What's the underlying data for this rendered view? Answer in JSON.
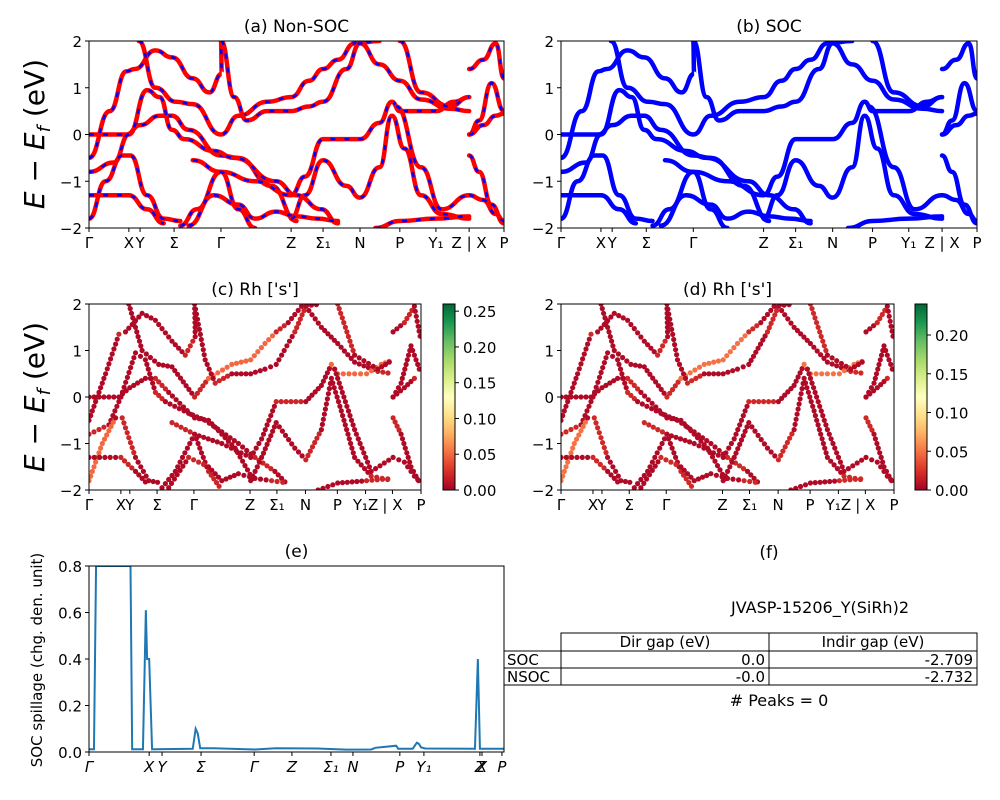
{
  "figure": {
    "id_label": "JVASP-15206_Y(SiRh)2",
    "peaks_text": "# Peaks = 0"
  },
  "chart_data": [
    {
      "panel": "a",
      "type": "line",
      "title": "(a) Non-SOC",
      "ylabel": "E − E_f (eV)",
      "ylim": [
        -2,
        2
      ],
      "yticks": [
        "2",
        "1",
        "0",
        "−1",
        "−2"
      ],
      "xticks": [
        "Γ",
        "X",
        "Y",
        "Σ",
        "Γ",
        "Z",
        "Σ₁",
        "N",
        "P",
        "Y₁",
        "Z | X",
        "P"
      ],
      "xtick_pos": [
        0,
        0.096,
        0.123,
        0.205,
        0.318,
        0.487,
        0.564,
        0.653,
        0.749,
        0.836,
        0.916,
        1.0
      ],
      "style": "red solid with blue dashed overlay",
      "colors": {
        "solid": "#ff0000",
        "dash": "#0000ff"
      },
      "bands": [
        [
          [
            0,
            0
          ],
          [
            0.09,
            0
          ],
          [
            0.123,
            0.2
          ],
          [
            0.17,
            0.4
          ],
          [
            0.2,
            0.4
          ],
          [
            0.24,
            0.1
          ],
          [
            0.318,
            -0.45
          ],
          [
            0.36,
            -0.5
          ],
          [
            0.44,
            -1.1
          ],
          [
            0.5,
            -1.85
          ]
        ],
        [
          [
            0,
            -0.5
          ],
          [
            0.05,
            0.5
          ],
          [
            0.09,
            1.35
          ],
          [
            0.11,
            1.4
          ],
          [
            0.16,
            1.8
          ],
          [
            0.2,
            1.65
          ],
          [
            0.25,
            1.2
          ],
          [
            0.29,
            0.9
          ],
          [
            0.32,
            1.3
          ],
          [
            0.318,
            2.0
          ]
        ],
        [
          [
            0,
            -0.8
          ],
          [
            0.06,
            -0.6
          ],
          [
            0.096,
            0.0
          ],
          [
            0.14,
            0.95
          ],
          [
            0.17,
            0.8
          ],
          [
            0.2,
            0.1
          ],
          [
            0.23,
            -0.1
          ],
          [
            0.3,
            -0.35
          ],
          [
            0.35,
            -0.5
          ],
          [
            0.45,
            -1.0
          ],
          [
            0.5,
            -1.3
          ],
          [
            0.56,
            -1.6
          ],
          [
            0.6,
            -1.9
          ]
        ],
        [
          [
            0,
            -1.8
          ],
          [
            0.04,
            -1.0
          ],
          [
            0.08,
            -0.45
          ],
          [
            0.1,
            -0.45
          ],
          [
            0.14,
            -1.3
          ],
          [
            0.18,
            -1.8
          ],
          [
            0.22,
            -1.85
          ]
        ],
        [
          [
            0,
            -1.3
          ],
          [
            0.096,
            -1.3
          ],
          [
            0.14,
            -1.6
          ],
          [
            0.18,
            -1.9
          ]
        ],
        [
          [
            0.12,
            2.0
          ],
          [
            0.16,
            1.0
          ],
          [
            0.21,
            0.7
          ],
          [
            0.25,
            0.65
          ],
          [
            0.318,
            0.0
          ],
          [
            0.36,
            0.4
          ],
          [
            0.43,
            0.7
          ],
          [
            0.487,
            0.8
          ],
          [
            0.53,
            1.15
          ],
          [
            0.564,
            1.4
          ],
          [
            0.6,
            1.6
          ],
          [
            0.64,
            1.95
          ],
          [
            0.7,
            2.0
          ]
        ],
        [
          [
            0.318,
            2.0
          ],
          [
            0.35,
            0.8
          ],
          [
            0.38,
            0.3
          ],
          [
            0.43,
            0.5
          ],
          [
            0.487,
            0.5
          ],
          [
            0.53,
            0.6
          ],
          [
            0.564,
            0.7
          ],
          [
            0.62,
            1.4
          ],
          [
            0.653,
            1.95
          ],
          [
            0.7,
            1.5
          ],
          [
            0.749,
            1.15
          ],
          [
            0.8,
            0.75
          ],
          [
            0.87,
            0.55
          ],
          [
            0.916,
            0.5
          ]
        ],
        [
          [
            0.25,
            -0.55
          ],
          [
            0.318,
            -0.8
          ],
          [
            0.4,
            -1.0
          ],
          [
            0.487,
            -1.3
          ],
          [
            0.52,
            -0.9
          ],
          [
            0.564,
            -0.1
          ],
          [
            0.653,
            -0.1
          ],
          [
            0.7,
            0.25
          ],
          [
            0.73,
            0.7
          ],
          [
            0.749,
            0.5
          ],
          [
            0.8,
            0.5
          ],
          [
            0.836,
            0.5
          ],
          [
            0.88,
            0.7
          ],
          [
            0.916,
            0.8
          ]
        ],
        [
          [
            0.22,
            -1.95
          ],
          [
            0.26,
            -1.6
          ],
          [
            0.318,
            -0.8
          ],
          [
            0.36,
            -1.6
          ],
          [
            0.4,
            -2.0
          ]
        ],
        [
          [
            0.24,
            -1.95
          ],
          [
            0.3,
            -1.3
          ],
          [
            0.36,
            -1.5
          ],
          [
            0.4,
            -1.8
          ],
          [
            0.45,
            -1.65
          ],
          [
            0.5,
            -1.75
          ],
          [
            0.55,
            -1.8
          ],
          [
            0.6,
            -1.85
          ]
        ],
        [
          [
            0.487,
            -1.8
          ],
          [
            0.52,
            -1.3
          ],
          [
            0.564,
            -0.55
          ],
          [
            0.62,
            -1.1
          ],
          [
            0.653,
            -1.35
          ],
          [
            0.7,
            -0.7
          ],
          [
            0.73,
            0.4
          ],
          [
            0.76,
            -0.3
          ],
          [
            0.8,
            -1.3
          ],
          [
            0.85,
            -1.7
          ],
          [
            0.916,
            -1.8
          ]
        ],
        [
          [
            0.69,
            -2.0
          ],
          [
            0.749,
            -1.85
          ],
          [
            0.836,
            -1.8
          ],
          [
            0.916,
            -1.75
          ]
        ],
        [
          [
            0.749,
            2.0
          ],
          [
            0.8,
            0.9
          ],
          [
            0.87,
            0.6
          ],
          [
            0.916,
            0.8
          ]
        ],
        [
          [
            0.74,
            0.6
          ],
          [
            0.8,
            -0.7
          ],
          [
            0.85,
            -1.6
          ],
          [
            0.916,
            -1.3
          ]
        ],
        [
          [
            0.916,
            1.4
          ],
          [
            0.95,
            1.6
          ],
          [
            0.98,
            1.95
          ],
          [
            1.0,
            1.2
          ]
        ],
        [
          [
            0.916,
            0.0
          ],
          [
            0.94,
            0.3
          ],
          [
            0.97,
            1.1
          ],
          [
            1.0,
            0.5
          ]
        ],
        [
          [
            0.916,
            0.0
          ],
          [
            0.95,
            0.2
          ],
          [
            0.98,
            0.4
          ],
          [
            1.0,
            0.45
          ]
        ],
        [
          [
            0.916,
            -0.45
          ],
          [
            0.94,
            -0.8
          ],
          [
            0.97,
            -1.5
          ],
          [
            1.0,
            -1.9
          ]
        ],
        [
          [
            0.916,
            -1.3
          ],
          [
            0.95,
            -1.4
          ],
          [
            0.98,
            -1.7
          ],
          [
            1.0,
            -1.85
          ]
        ]
      ]
    },
    {
      "panel": "b",
      "type": "line",
      "title": "(b) SOC",
      "ylim": [
        -2,
        2
      ],
      "yticks": [
        "2",
        "1",
        "0",
        "−1",
        "−2"
      ],
      "xticks": [
        "Γ",
        "X",
        "Y",
        "Σ",
        "Γ",
        "Z",
        "Σ₁",
        "N",
        "P",
        "Y₁",
        "Z | X",
        "P"
      ],
      "xtick_pos": [
        0,
        0.096,
        0.123,
        0.205,
        0.318,
        0.487,
        0.564,
        0.653,
        0.749,
        0.836,
        0.916,
        1.0
      ],
      "colors": {
        "solid": "#0000ff"
      },
      "bands_ref": "same as panel a"
    },
    {
      "panel": "c",
      "type": "scatter",
      "title": "(c)  Rh ['s']",
      "ylabel": "E − E_f (eV)",
      "ylim": [
        -2,
        2
      ],
      "yticks": [
        "2",
        "1",
        "0",
        "−1",
        "−2"
      ],
      "xticks": [
        "Γ",
        "X",
        "Y",
        "Σ",
        "Γ",
        "Z",
        "Σ₁",
        "N",
        "P",
        "Y₁Z",
        "| X",
        "P"
      ],
      "colorbar": {
        "cmap": "RdYlGn",
        "min": 0.0,
        "max": 0.26,
        "ticks": [
          "0.00",
          "0.05",
          "0.10",
          "0.15",
          "0.20",
          "0.25"
        ]
      },
      "bands_ref": "same as panel a, colored by Rh s weight"
    },
    {
      "panel": "d",
      "type": "scatter",
      "title": "(d) Rh ['s']",
      "ylim": [
        -2,
        2
      ],
      "yticks": [
        "2",
        "1",
        "0",
        "−1",
        "−2"
      ],
      "xticks": [
        "Γ",
        "X",
        "Y",
        "Σ",
        "Γ",
        "Z",
        "Σ₁",
        "N",
        "P",
        "Y₁Z",
        "| X",
        "P"
      ],
      "colorbar": {
        "cmap": "RdYlGn",
        "min": 0.0,
        "max": 0.24,
        "ticks": [
          "0.00",
          "0.05",
          "0.10",
          "0.15",
          "0.20"
        ]
      },
      "bands_ref": "same as panel a, colored by Rh s weight"
    },
    {
      "panel": "e",
      "type": "line",
      "title": "(e)",
      "ylabel": "SOC spillage (chg. den. unit)",
      "ylim": [
        0,
        0.8
      ],
      "yticks": [
        "0.8",
        "0.6",
        "0.4",
        "0.2",
        "0.0"
      ],
      "xticks": [
        "Γ",
        "X",
        "Y",
        "Σ",
        "Γ",
        "Z",
        "Σ₁",
        "N",
        "P",
        "Y₁",
        "Z",
        "X",
        "P"
      ],
      "xtick_pos": [
        0,
        0.145,
        0.176,
        0.27,
        0.398,
        0.489,
        0.583,
        0.636,
        0.749,
        0.807,
        0.942,
        0.947,
        0.995
      ],
      "color": "#1f77b4",
      "x": [
        0,
        0.012,
        0.017,
        0.1,
        0.104,
        0.13,
        0.137,
        0.14,
        0.145,
        0.152,
        0.155,
        0.16,
        0.25,
        0.257,
        0.262,
        0.268,
        0.3,
        0.4,
        0.45,
        0.55,
        0.62,
        0.68,
        0.69,
        0.74,
        0.745,
        0.78,
        0.79,
        0.795,
        0.8,
        0.81,
        0.93,
        0.937,
        0.942,
        0.95,
        1.0
      ],
      "y": [
        0.012,
        0.012,
        0.8,
        0.8,
        0.012,
        0.012,
        0.61,
        0.4,
        0.4,
        0.012,
        0.012,
        0.012,
        0.014,
        0.1,
        0.08,
        0.016,
        0.016,
        0.011,
        0.016,
        0.015,
        0.01,
        0.011,
        0.018,
        0.027,
        0.014,
        0.014,
        0.04,
        0.035,
        0.02,
        0.015,
        0.014,
        0.4,
        0.014,
        0.014,
        0.014
      ]
    },
    {
      "panel": "f",
      "type": "table",
      "title": "(f)",
      "columns": [
        "Dir gap (eV)",
        "Indir gap (eV)"
      ],
      "rows": [
        {
          "label": "SOC",
          "values": [
            "0.0",
            "-2.709"
          ]
        },
        {
          "label": "NSOC",
          "values": [
            "-0.0",
            "-2.732"
          ]
        }
      ]
    }
  ]
}
